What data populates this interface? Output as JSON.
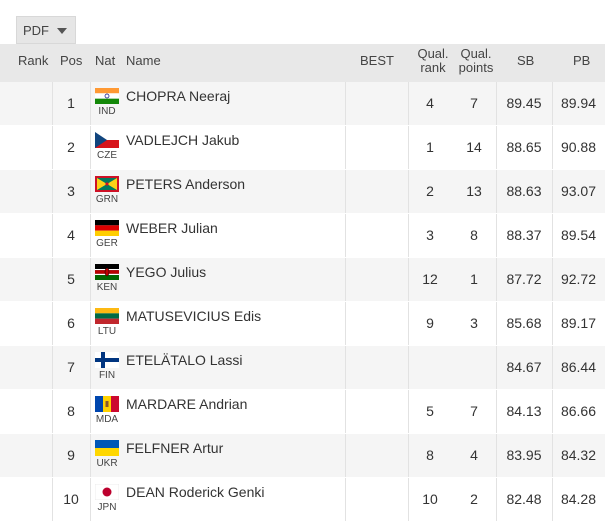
{
  "toolbar": {
    "pdf_label": "PDF"
  },
  "headers": {
    "rank": "Rank",
    "pos": "Pos",
    "nat": "Nat",
    "name": "Name",
    "best": "BEST",
    "qual_rank_1": "Qual.",
    "qual_rank_2": "rank",
    "qual_points_1": "Qual.",
    "qual_points_2": "points",
    "sb": "SB",
    "pb": "PB"
  },
  "rows": [
    {
      "pos": "1",
      "nat": "IND",
      "name": "CHOPRA Neeraj",
      "qrank": "4",
      "qpoints": "7",
      "sb": "89.45",
      "pb": "89.94",
      "flag": "ind"
    },
    {
      "pos": "2",
      "nat": "CZE",
      "name": "VADLEJCH Jakub",
      "qrank": "1",
      "qpoints": "14",
      "sb": "88.65",
      "pb": "90.88",
      "flag": "cze"
    },
    {
      "pos": "3",
      "nat": "GRN",
      "name": "PETERS Anderson",
      "qrank": "2",
      "qpoints": "13",
      "sb": "88.63",
      "pb": "93.07",
      "flag": "grn"
    },
    {
      "pos": "4",
      "nat": "GER",
      "name": "WEBER Julian",
      "qrank": "3",
      "qpoints": "8",
      "sb": "88.37",
      "pb": "89.54",
      "flag": "ger"
    },
    {
      "pos": "5",
      "nat": "KEN",
      "name": "YEGO Julius",
      "qrank": "12",
      "qpoints": "1",
      "sb": "87.72",
      "pb": "92.72",
      "flag": "ken"
    },
    {
      "pos": "6",
      "nat": "LTU",
      "name": "MATUSEVICIUS Edis",
      "qrank": "9",
      "qpoints": "3",
      "sb": "85.68",
      "pb": "89.17",
      "flag": "ltu"
    },
    {
      "pos": "7",
      "nat": "FIN",
      "name": "ETELÄTALO Lassi",
      "qrank": "",
      "qpoints": "",
      "sb": "84.67",
      "pb": "86.44",
      "flag": "fin"
    },
    {
      "pos": "8",
      "nat": "MDA",
      "name": "MARDARE Andrian",
      "qrank": "5",
      "qpoints": "7",
      "sb": "84.13",
      "pb": "86.66",
      "flag": "mda"
    },
    {
      "pos": "9",
      "nat": "UKR",
      "name": "FELFNER Artur",
      "qrank": "8",
      "qpoints": "4",
      "sb": "83.95",
      "pb": "84.32",
      "flag": "ukr"
    },
    {
      "pos": "10",
      "nat": "JPN",
      "name": "DEAN Roderick Genki",
      "qrank": "10",
      "qpoints": "2",
      "sb": "82.48",
      "pb": "84.28",
      "flag": "jpn"
    }
  ]
}
